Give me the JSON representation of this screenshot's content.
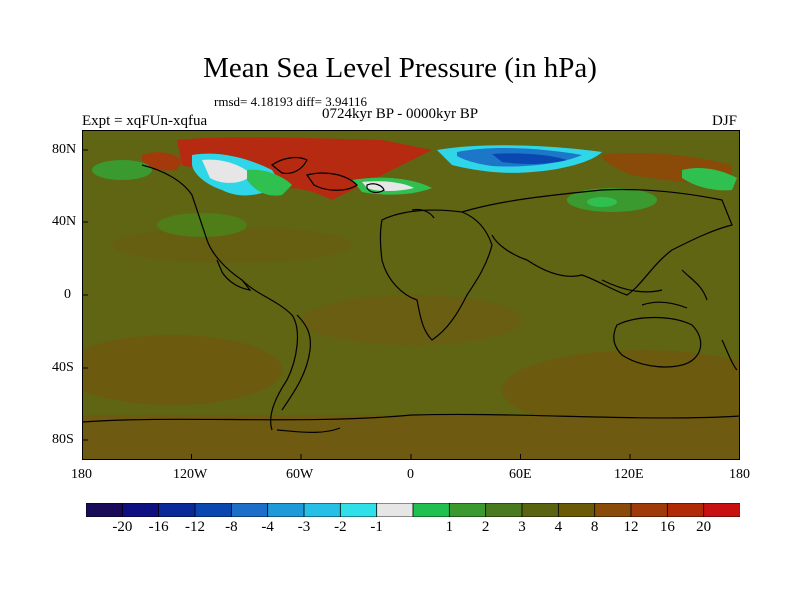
{
  "title": "Mean Sea Level Pressure (in hPa)",
  "stats": "rmsd= 4.18193 diff= 3.94116",
  "period": "0724kyr BP - 0000kyr BP",
  "expt": "Expt = xqFUn-xqfua",
  "season": "DJF",
  "y_ticks": [
    "80N",
    "40N",
    "0",
    "40S",
    "80S"
  ],
  "x_ticks": [
    "180",
    "120W",
    "60W",
    "0",
    "60E",
    "120E",
    "180"
  ],
  "colorbar": {
    "colors": [
      "#1a0a5a",
      "#0e0f80",
      "#0a2a9a",
      "#0a47b0",
      "#1c6fc8",
      "#1f9ad8",
      "#26bfe6",
      "#30e0e8",
      "#e6e6e6",
      "#1fc050",
      "#3a9a30",
      "#4a7a20",
      "#5a6310",
      "#6a5a05",
      "#8a4a08",
      "#a03a08",
      "#b02a08",
      "#c81010"
    ],
    "labels": [
      "-20",
      "-16",
      "-12",
      "-8",
      "-4",
      "-3",
      "-2",
      "-1",
      "1",
      "2",
      "3",
      "4",
      "8",
      "12",
      "16",
      "20"
    ]
  },
  "colors": {
    "base": "#5f6512",
    "ocean_south": "#6b5a10",
    "red": "#b52a10",
    "blue": "#1d77c8",
    "cyan": "#2fd6e8",
    "green": "#2fc050"
  }
}
